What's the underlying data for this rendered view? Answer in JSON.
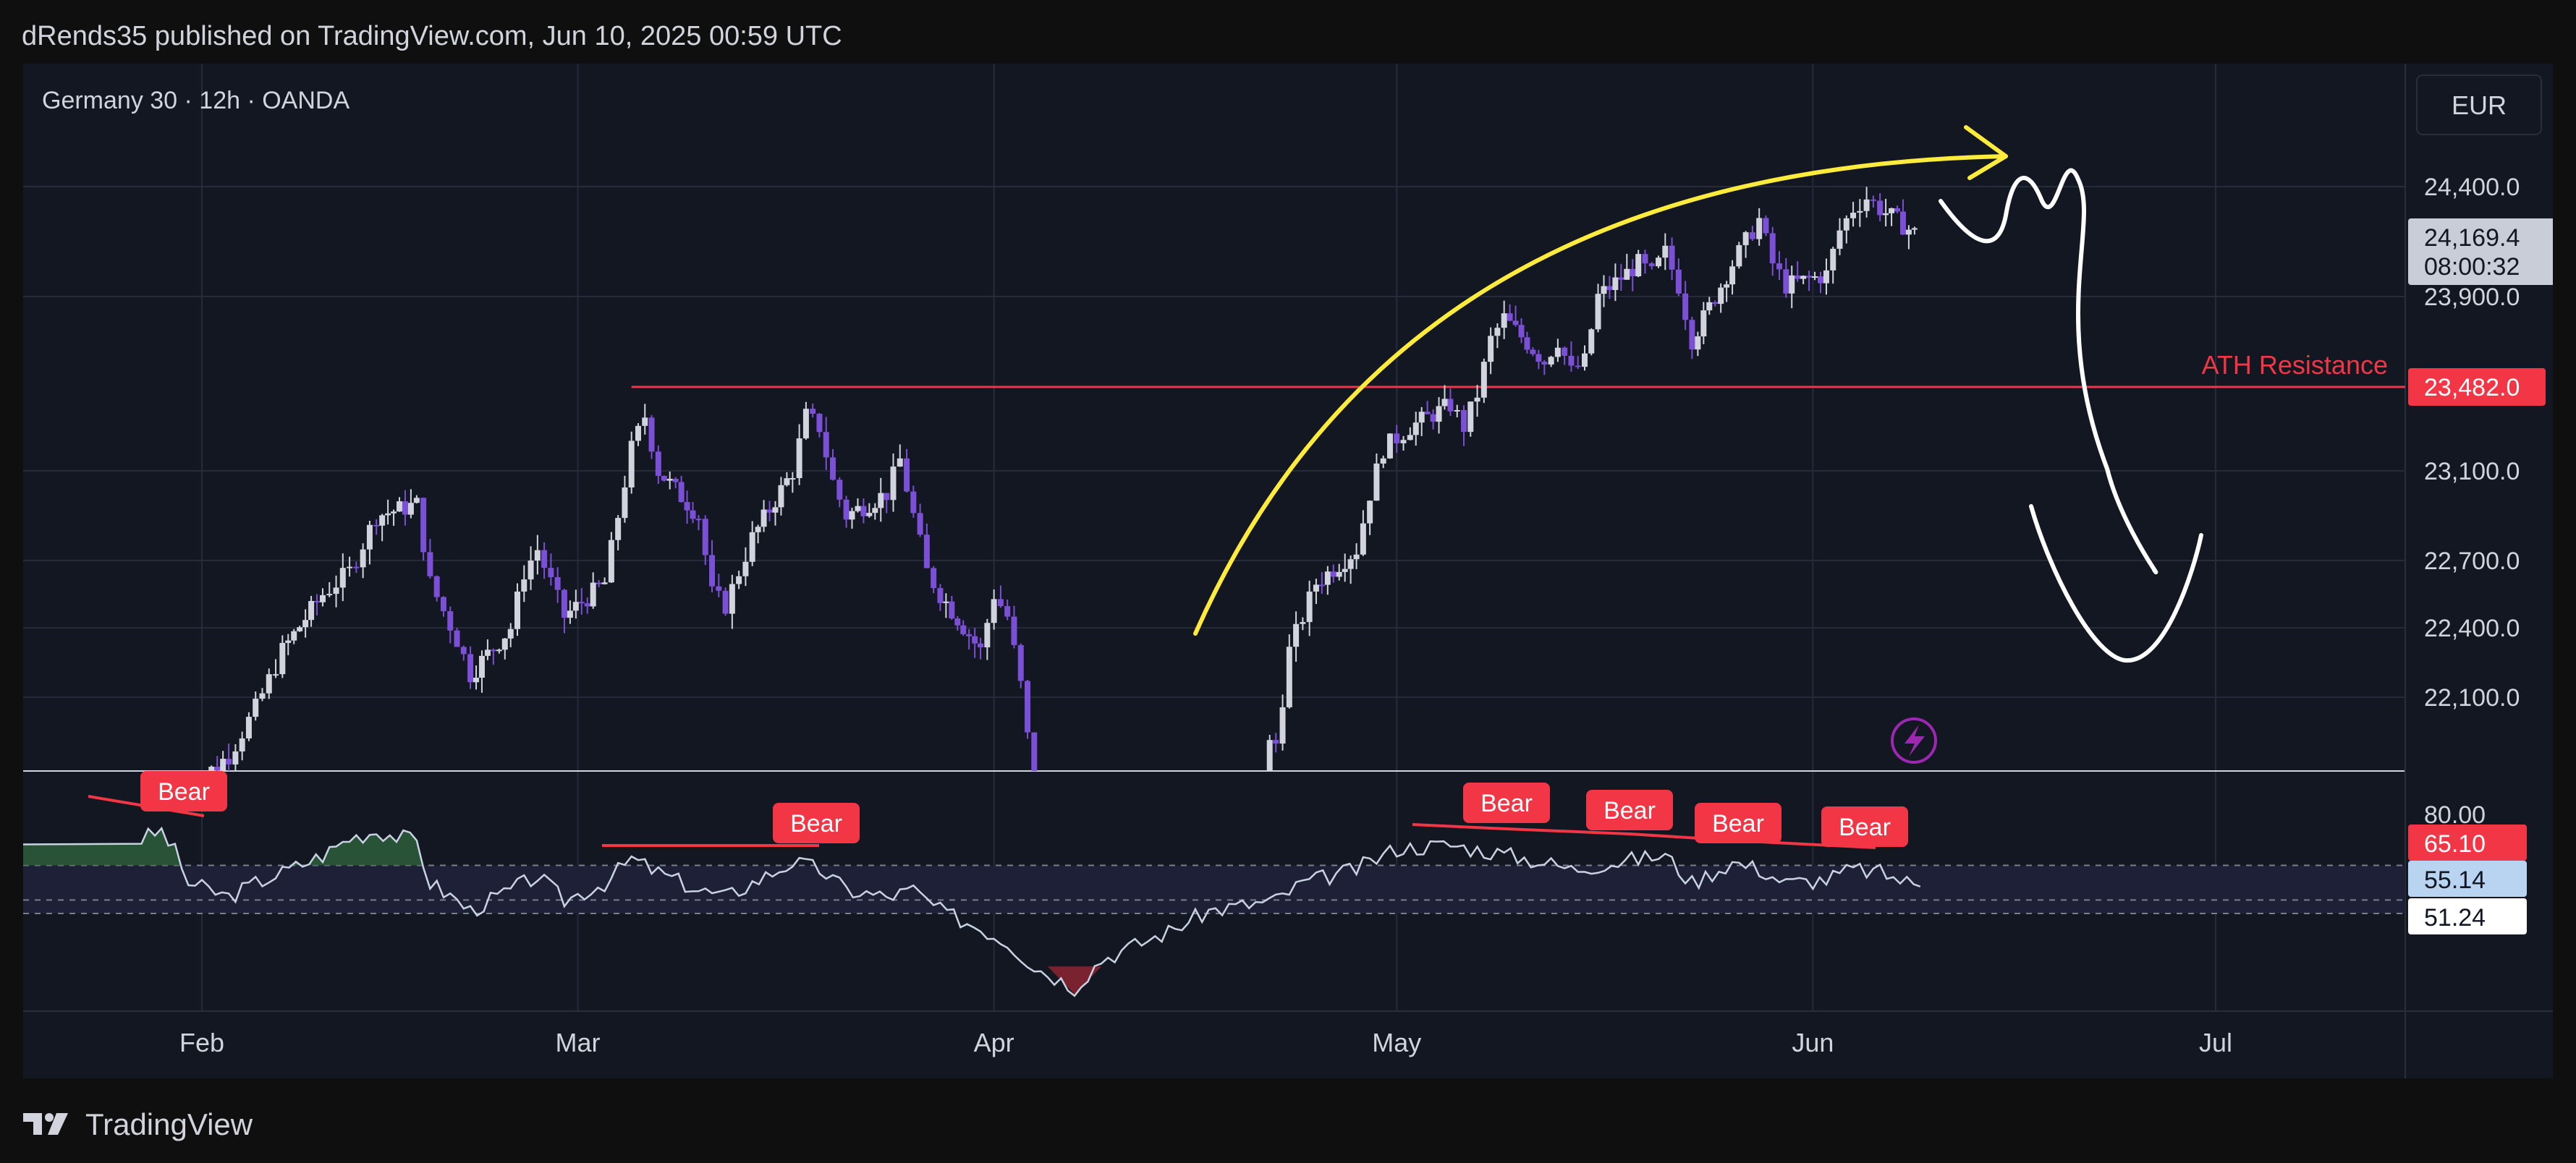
{
  "header": {
    "publisher_line": "dRends35 published on TradingView.com, Jun 10, 2025 00:59 UTC"
  },
  "footer": {
    "brand": "TradingView",
    "logo_icon": "tradingview-logo-icon"
  },
  "colors": {
    "background": "#131722",
    "grid": "#262b3a",
    "bull_candle": "#d1d4dc",
    "bear_candle": "#7b4fd6",
    "resistance": "#f23645",
    "arc": "#ffeb3b",
    "drawing": "#ffffff",
    "rsi_line": "#c9d2e3",
    "bear_label": "#f23645",
    "rsi_band": "#1d2036",
    "rsi_ob_fill": "#2e5e3a",
    "rsi_os_fill": "#7a2230"
  },
  "chart_data": [
    {
      "type": "candlestick",
      "symbol_label": "Germany 30 · 12h · OANDA",
      "currency": "EUR",
      "x_ticks": [
        "Feb",
        "Mar",
        "Apr",
        "May",
        "Jun",
        "Jul"
      ],
      "y_ticks": [
        22100,
        22400,
        22700,
        23100,
        23482,
        23900,
        24400
      ],
      "y_tick_labels": [
        "22,100.0",
        "22,400.0",
        "22,700.0",
        "23,100.0",
        "23,482.0",
        "23,900.0",
        "24,400.0"
      ],
      "last_price": "24,169.4",
      "countdown": "08:00:32",
      "resistance": {
        "value": 23482,
        "label": "ATH Resistance",
        "price_label": "23,482.0"
      },
      "close_path": [
        [
          "Jan 31",
          21700
        ],
        [
          "Feb 3",
          21850
        ],
        [
          "Feb 5",
          22050
        ],
        [
          "Feb 7",
          22300
        ],
        [
          "Feb 10",
          22550
        ],
        [
          "Feb 12",
          22650
        ],
        [
          "Feb 14",
          22900
        ],
        [
          "Feb 17",
          22950
        ],
        [
          "Feb 18",
          22600
        ],
        [
          "Feb 20",
          22350
        ],
        [
          "Feb 21",
          22200
        ],
        [
          "Feb 24",
          22400
        ],
        [
          "Feb 25",
          22650
        ],
        [
          "Feb 26",
          22750
        ],
        [
          "Feb 27",
          22600
        ],
        [
          "Feb 28",
          22450
        ],
        [
          "Mar 3",
          22600
        ],
        [
          "Mar 4",
          22900
        ],
        [
          "Mar 5",
          23200
        ],
        [
          "Mar 6",
          23350
        ],
        [
          "Mar 7",
          23100
        ],
        [
          "Mar 10",
          22900
        ],
        [
          "Mar 11",
          22550
        ],
        [
          "Mar 12",
          22500
        ],
        [
          "Mar 13",
          22650
        ],
        [
          "Mar 14",
          22800
        ],
        [
          "Mar 17",
          23100
        ],
        [
          "Mar 18",
          23350
        ],
        [
          "Mar 19",
          23300
        ],
        [
          "Mar 20",
          23050
        ],
        [
          "Mar 21",
          22900
        ],
        [
          "Mar 24",
          23000
        ],
        [
          "Mar 25",
          23150
        ],
        [
          "Mar 26",
          22900
        ],
        [
          "Mar 27",
          22650
        ],
        [
          "Mar 28",
          22550
        ],
        [
          "Mar 31",
          22300
        ],
        [
          "Apr 1",
          22550
        ],
        [
          "Apr 2",
          22450
        ],
        [
          "Apr 3",
          22150
        ],
        [
          "Apr 4",
          21700
        ],
        [
          "Apr 22",
          21900
        ],
        [
          "Apr 23",
          22300
        ],
        [
          "Apr 24",
          22450
        ],
        [
          "Apr 25",
          22600
        ],
        [
          "Apr 28",
          22750
        ],
        [
          "Apr 29",
          23000
        ],
        [
          "Apr 30",
          23200
        ],
        [
          "May 2",
          23300
        ],
        [
          "May 5",
          23400
        ],
        [
          "May 6",
          23300
        ],
        [
          "May 7",
          23450
        ],
        [
          "May 8",
          23700
        ],
        [
          "May 9",
          23800
        ],
        [
          "May 12",
          23600
        ],
        [
          "May 13",
          23700
        ],
        [
          "May 14",
          23550
        ],
        [
          "May 15",
          23600
        ],
        [
          "May 16",
          23900
        ],
        [
          "May 19",
          24050
        ],
        [
          "May 20",
          24000
        ],
        [
          "May 21",
          24100
        ],
        [
          "May 22",
          23950
        ],
        [
          "May 23",
          23700
        ],
        [
          "May 26",
          24050
        ],
        [
          "May 27",
          24150
        ],
        [
          "May 28",
          24250
        ],
        [
          "May 29",
          24050
        ],
        [
          "May 30",
          23950
        ],
        [
          "Jun 2",
          24000
        ],
        [
          "Jun 3",
          24200
        ],
        [
          "Jun 4",
          24300
        ],
        [
          "Jun 5",
          24350
        ],
        [
          "Jun 6",
          24300
        ],
        [
          "Jun 9",
          24169.4
        ]
      ]
    },
    {
      "type": "line",
      "indicator": "RSI",
      "y_tick_labels": [
        "80.00"
      ],
      "value_labels": [
        "65.10",
        "55.14",
        "51.24"
      ],
      "divergence_labels": [
        "Bear",
        "Bear",
        "Bear",
        "Bear",
        "Bear",
        "Bear"
      ],
      "line": [
        [
          "Jan 27",
          72
        ],
        [
          "Jan 29",
          75
        ],
        [
          "Jan 30",
          69
        ],
        [
          "Jan 31",
          60
        ],
        [
          "Feb 3",
          56
        ],
        [
          "Feb 5",
          60
        ],
        [
          "Feb 7",
          63
        ],
        [
          "Feb 10",
          68
        ],
        [
          "Feb 12",
          73
        ],
        [
          "Feb 14",
          75
        ],
        [
          "Feb 17",
          72
        ],
        [
          "Feb 18",
          60
        ],
        [
          "Feb 20",
          55
        ],
        [
          "Feb 21",
          52
        ],
        [
          "Feb 24",
          58
        ],
        [
          "Feb 26",
          62
        ],
        [
          "Feb 28",
          55
        ],
        [
          "Mar 3",
          60
        ],
        [
          "Mar 5",
          67
        ],
        [
          "Mar 7",
          63
        ],
        [
          "Mar 10",
          58
        ],
        [
          "Mar 12",
          56
        ],
        [
          "Mar 14",
          60
        ],
        [
          "Mar 17",
          66
        ],
        [
          "Mar 19",
          64
        ],
        [
          "Mar 21",
          58
        ],
        [
          "Mar 24",
          56
        ],
        [
          "Mar 26",
          58
        ],
        [
          "Mar 28",
          52
        ],
        [
          "Mar 31",
          47
        ],
        [
          "Apr 2",
          43
        ],
        [
          "Apr 4",
          36
        ],
        [
          "Apr 7",
          30
        ],
        [
          "Apr 9",
          38
        ],
        [
          "Apr 14",
          46
        ],
        [
          "Apr 17",
          52
        ],
        [
          "Apr 22",
          55
        ],
        [
          "Apr 24",
          60
        ],
        [
          "Apr 28",
          64
        ],
        [
          "May 1",
          70
        ],
        [
          "May 5",
          71
        ],
        [
          "May 8",
          69
        ],
        [
          "May 12",
          66
        ],
        [
          "May 14",
          64
        ],
        [
          "May 19",
          67
        ],
        [
          "May 21",
          68
        ],
        [
          "May 23",
          60
        ],
        [
          "May 26",
          66
        ],
        [
          "May 28",
          64
        ],
        [
          "May 30",
          60
        ],
        [
          "Jun 2",
          61
        ],
        [
          "Jun 4",
          64
        ],
        [
          "Jun 6",
          63
        ],
        [
          "Jun 9",
          59
        ]
      ]
    }
  ]
}
